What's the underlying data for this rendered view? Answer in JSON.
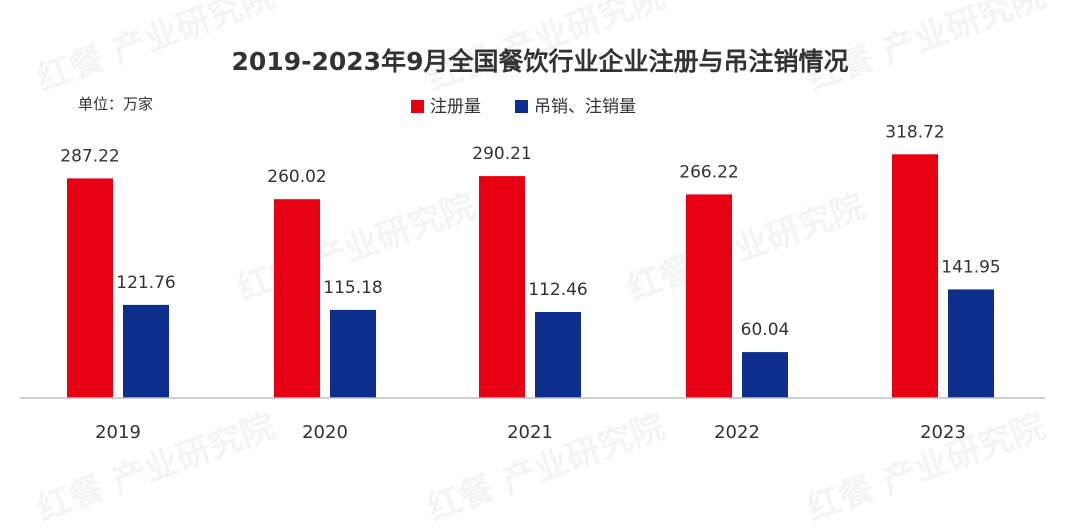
{
  "watermark": "红餐 产业研究院",
  "chart_data": {
    "type": "bar",
    "title": "2019-2023年9月全国餐饮行业企业注册与吊注销情况",
    "unit_label": "单位：万家",
    "categories": [
      "2019",
      "2020",
      "2021",
      "2022",
      "2023"
    ],
    "series": [
      {
        "name": "注册量",
        "color": "#e60012",
        "values": [
          287.22,
          260.02,
          290.21,
          266.22,
          318.72
        ]
      },
      {
        "name": "吊销、注销量",
        "color": "#0d2e8c",
        "values": [
          121.76,
          115.18,
          112.46,
          60.04,
          141.95
        ]
      }
    ],
    "ylim": [
      0,
      340
    ],
    "legend_position": "top-center",
    "grid": false
  }
}
